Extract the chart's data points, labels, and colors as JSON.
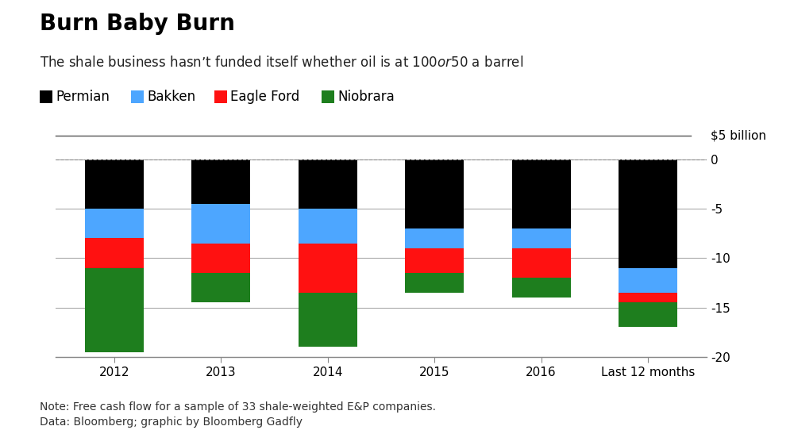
{
  "title": "Burn Baby Burn",
  "subtitle": "The shale business hasn’t funded itself whether oil is at $100 or $50 a barrel",
  "note": "Note: Free cash flow for a sample of 33 shale-weighted E&P companies.\nData: Bloomberg; graphic by Bloomberg Gadfly",
  "reference_label": "$5 billion",
  "categories": [
    "2012",
    "2013",
    "2014",
    "2015",
    "2016",
    "Last 12 months"
  ],
  "permian": [
    -5.0,
    -4.5,
    -5.0,
    -7.0,
    -7.0,
    -11.0
  ],
  "bakken": [
    -3.0,
    -4.0,
    -3.5,
    -2.0,
    -2.0,
    -2.5
  ],
  "eagle_ford": [
    -3.0,
    -3.0,
    -5.0,
    -2.5,
    -3.0,
    -1.0
  ],
  "niobrara": [
    -8.5,
    -3.0,
    -5.5,
    -2.0,
    -2.0,
    -2.5
  ],
  "colors": {
    "Permian": "#000000",
    "Bakken": "#4da6ff",
    "Eagle Ford": "#ff1111",
    "Niobrara": "#1e7e1e"
  },
  "ylim": [
    -20,
    0
  ],
  "yticks": [
    0,
    -5,
    -10,
    -15,
    -20
  ],
  "bg_color": "#ffffff",
  "title_fontsize": 20,
  "subtitle_fontsize": 12,
  "legend_fontsize": 12,
  "tick_fontsize": 11,
  "note_fontsize": 10,
  "bar_width": 0.55
}
